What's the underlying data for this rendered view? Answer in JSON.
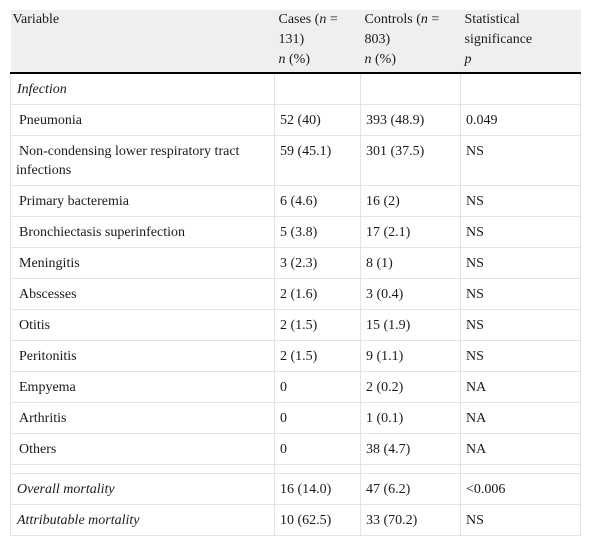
{
  "table": {
    "headers": {
      "variable": "Variable",
      "cases_a": "Cases (",
      "cases_n": "n",
      "cases_b": " = 131)",
      "cases_unit_n": "n",
      "cases_unit": " (%)",
      "controls_a": "Controls (",
      "controls_n": "n",
      "controls_b": " = 803)",
      "controls_unit_n": "n",
      "controls_unit": " (%)",
      "stat": "Statistical significance",
      "stat_unit": "p"
    },
    "section_infection": "Infection",
    "rows": [
      {
        "label": "Pneumonia",
        "cases": "52 (40)",
        "controls": "393 (48.9)",
        "sig": "0.049"
      },
      {
        "label": "Non-condensing lower respiratory tract infections",
        "cases": "59 (45.1)",
        "controls": "301 (37.5)",
        "sig": "NS"
      },
      {
        "label": "Primary bacteremia",
        "cases": "6 (4.6)",
        "controls": "16 (2)",
        "sig": "NS"
      },
      {
        "label": "Bronchiectasis superinfection",
        "cases": "5 (3.8)",
        "controls": "17 (2.1)",
        "sig": "NS"
      },
      {
        "label": "Meningitis",
        "cases": "3 (2.3)",
        "controls": "8 (1)",
        "sig": "NS"
      },
      {
        "label": "Abscesses",
        "cases": "2 (1.6)",
        "controls": "3 (0.4)",
        "sig": "NS"
      },
      {
        "label": "Otitis",
        "cases": "2 (1.5)",
        "controls": "15 (1.9)",
        "sig": "NS"
      },
      {
        "label": "Peritonitis",
        "cases": "2 (1.5)",
        "controls": "9 (1.1)",
        "sig": "NS"
      },
      {
        "label": "Empyema",
        "cases": "0",
        "controls": "2 (0.2)",
        "sig": "NA"
      },
      {
        "label": "Arthritis",
        "cases": "0",
        "controls": "1 (0.1)",
        "sig": "NA"
      },
      {
        "label": "Others",
        "cases": "0",
        "controls": "38 (4.7)",
        "sig": "NA"
      }
    ],
    "overall": {
      "label": "Overall mortality",
      "cases": "16 (14.0)",
      "controls": "47 (6.2)",
      "sig": "<0.006"
    },
    "attributable": {
      "label": "Attributable mortality",
      "cases": "10 (62.5)",
      "controls": "33 (70.2)",
      "sig": "NS"
    }
  }
}
